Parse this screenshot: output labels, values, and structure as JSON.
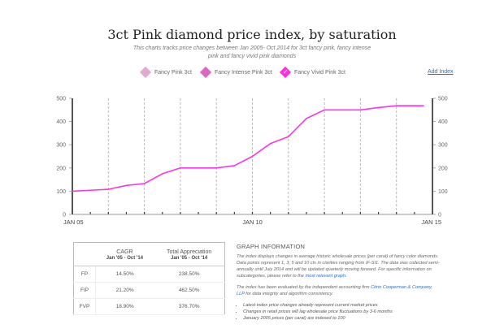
{
  "header": {
    "title": "3ct Pink diamond price index, by saturation",
    "subtitle": "This charts tracks price changes between Jan 2005- Oct 2014 for 3ct fancy pink, fancy intense pink and fancy vivid pink diamonds"
  },
  "legend": {
    "items": [
      {
        "label": "Fancy Pink 3ct",
        "color": "#e3a9cf",
        "selected": false
      },
      {
        "label": "Fancy Intense Pink 3ct",
        "color": "#dd66c2",
        "selected": false
      },
      {
        "label": "Fancy Vivid Pink 3ct",
        "color": "#ff2ee0",
        "selected": true
      }
    ],
    "add_index_label": "Add Index"
  },
  "chart_data": {
    "type": "line",
    "title": "3ct Pink diamond price index, by saturation",
    "xlabel": "",
    "ylabel": "",
    "x_tick_labels": [
      "JAN 05",
      "JAN 10",
      "JAN 15"
    ],
    "x_range": [
      2005.0,
      2015.0
    ],
    "ylim": [
      0,
      500
    ],
    "y_ticks": [
      0,
      100,
      200,
      300,
      400,
      500
    ],
    "grid": "vertical dashed, yearly",
    "dual_y_axis": true,
    "series": [
      {
        "name": "Fancy Vivid Pink 3ct",
        "color": "#ff33e6",
        "x": [
          2005.0,
          2006.0,
          2006.5,
          2007.0,
          2007.5,
          2008.0,
          2009.0,
          2009.5,
          2010.0,
          2010.5,
          2011.0,
          2011.5,
          2012.0,
          2013.0,
          2013.5,
          2014.0,
          2014.75
        ],
        "values": [
          100,
          108,
          125,
          133,
          175,
          200,
          200,
          210,
          250,
          305,
          335,
          413,
          450,
          450,
          460,
          468,
          468
        ]
      }
    ]
  },
  "table": {
    "headers": [
      {
        "title": "",
        "sub": ""
      },
      {
        "title": "CAGR",
        "sub": "Jan '05 - Oct '14"
      },
      {
        "title": "Total Appreciation",
        "sub": "Jan '05 - Oct '14"
      }
    ],
    "rows": [
      {
        "label": "FP",
        "cagr": "14.50%",
        "total": "238.50%"
      },
      {
        "label": "FIP",
        "cagr": "21.20%",
        "total": "462.50%"
      },
      {
        "label": "FVP",
        "cagr": "18.90%",
        "total": "376.70%"
      }
    ]
  },
  "info": {
    "heading": "GRAPH INFORMATION",
    "para1": "The index displays changes in average historic wholesale prices (per carat) of fancy color diamonds. Data points represent 1, 3, 5 and 10 cts in clarities ranging from IF-SI1. The data was collected semi-annually until July 2014 and will be updated quarterly moving forward. For specific information on subcategories, please refer to the ",
    "para1_link": "most relevant graph.",
    "para2": "The index has been evaluated by the independent accounting firm ",
    "para2_link": "Citrin Cooperman & Company, LLP",
    "para2_end": " for data integrity and algorithm consistency.",
    "bullets": [
      "Latest index price changes already represent current market prices",
      "Changes in retail prices will lag wholesale price fluctuations by 3-6 months",
      "January 2005 prices (per carat) are indexed to 100"
    ]
  }
}
